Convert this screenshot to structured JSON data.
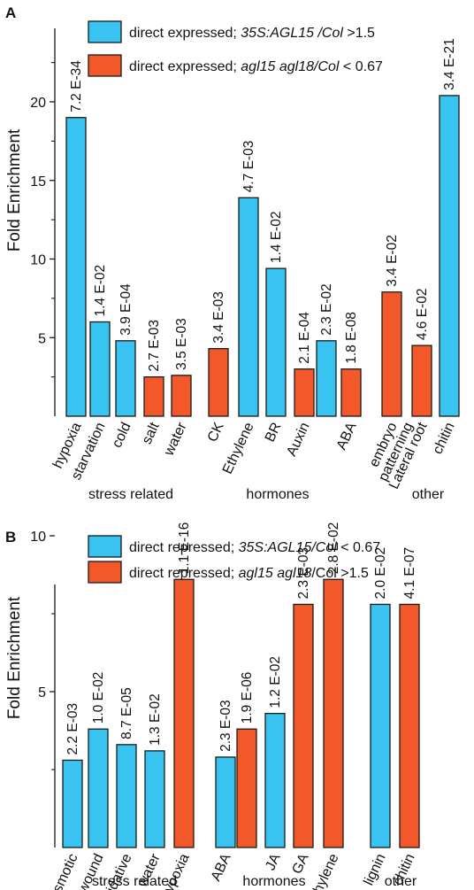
{
  "colors": {
    "blue": "#38c3f0",
    "orange": "#f3582a",
    "stroke": "#1a1a1a"
  },
  "chart_data": [
    {
      "type": "bar",
      "panel": "A",
      "ylabel": "Fold Enrichment",
      "ylim": [
        0,
        25
      ],
      "yticks": [
        5,
        10,
        15,
        20
      ],
      "legend": [
        {
          "color": "blue",
          "parts": [
            {
              "t": "direct expressed; ",
              "i": false
            },
            {
              "t": "35S:AGL15 /Col",
              "i": true
            },
            {
              "t": " >1.5",
              "i": false
            }
          ]
        },
        {
          "color": "orange",
          "parts": [
            {
              "t": "direct expressed; ",
              "i": false
            },
            {
              "t": "agl15 agl18/Col",
              "i": true
            },
            {
              "t": " < 0.67",
              "i": false
            }
          ]
        }
      ],
      "categories": [
        {
          "label": [
            "hypoxia"
          ],
          "value": 19.0,
          "color": "blue",
          "pval": "7.2 E-34"
        },
        {
          "label": [
            "starvation"
          ],
          "value": 6.0,
          "color": "blue",
          "pval": "1.4 E-02"
        },
        {
          "label": [
            "cold"
          ],
          "value": 4.8,
          "color": "blue",
          "pval": "3.9 E-04"
        },
        {
          "label": [
            "salt"
          ],
          "value": 2.5,
          "color": "orange",
          "pval": "2.7 E-03"
        },
        {
          "label": [
            "water"
          ],
          "value": 2.6,
          "color": "orange",
          "pval": "3.5 E-03"
        },
        {
          "label": [
            "CK"
          ],
          "value": 4.3,
          "color": "orange",
          "pval": "3.4 E-03"
        },
        {
          "label": [
            "Ethylene"
          ],
          "value": 13.9,
          "color": "blue",
          "pval": "4.7 E-03"
        },
        {
          "label": [
            "BR"
          ],
          "value": 9.4,
          "color": "blue",
          "pval": "1.4 E-02"
        },
        {
          "label": [
            "Auxin"
          ],
          "value": 3.0,
          "color": "orange",
          "pval": "2.1 E-04"
        },
        {
          "label": [],
          "value": 4.8,
          "color": "blue",
          "pval": "2.3 E-02"
        },
        {
          "label": [
            "ABA"
          ],
          "value": 3.0,
          "color": "orange",
          "pval": "1.8 E-08"
        },
        {
          "label": [
            "embryo",
            "patterning"
          ],
          "value": 7.9,
          "color": "orange",
          "pval": "3.4 E-02"
        },
        {
          "label": [
            "Lateral root"
          ],
          "value": 4.5,
          "color": "orange",
          "pval": "4.6 E-02"
        },
        {
          "label": [
            "chitin"
          ],
          "value": 20.4,
          "color": "blue",
          "pval": "3.4 E-21"
        }
      ],
      "groups": [
        "stress related",
        "hormones",
        "other"
      ]
    },
    {
      "type": "bar",
      "panel": "B",
      "ylabel": "Fold Enrichment",
      "ylim": [
        0,
        13.5
      ],
      "yticks": [
        5,
        10
      ],
      "legend": [
        {
          "color": "blue",
          "parts": [
            {
              "t": "direct repressed; ",
              "i": false
            },
            {
              "t": "35S:AGL15/Col",
              "i": true
            },
            {
              "t": " < 0.67",
              "i": false
            }
          ]
        },
        {
          "color": "orange",
          "parts": [
            {
              "t": "direct repressed; ",
              "i": false
            },
            {
              "t": "agl15 agl18",
              "i": true
            },
            {
              "t": "/Col >1.5",
              "i": false
            }
          ]
        }
      ],
      "categories": [
        {
          "label": [
            "osmotic"
          ],
          "value": 2.8,
          "color": "blue",
          "pval": "2.2 E-03"
        },
        {
          "label": [
            "wound"
          ],
          "value": 3.8,
          "color": "blue",
          "pval": "1.0 E-02"
        },
        {
          "label": [
            "oxidative"
          ],
          "value": 3.3,
          "color": "blue",
          "pval": "8.7 E-05"
        },
        {
          "label": [
            "water"
          ],
          "value": 3.1,
          "color": "blue",
          "pval": "1.3 E-02"
        },
        {
          "label": [
            "hypoxia"
          ],
          "value": 8.6,
          "color": "orange",
          "pval": "1.1 E-16"
        },
        {
          "label": [
            "ABA"
          ],
          "value": 2.9,
          "color": "blue",
          "pval": "2.3 E-03"
        },
        {
          "label": [],
          "value": 3.8,
          "color": "orange",
          "pval": "1.9 E-06"
        },
        {
          "label": [
            "JA"
          ],
          "value": 4.3,
          "color": "blue",
          "pval": "1.2 E-02"
        },
        {
          "label": [
            "GA"
          ],
          "value": 7.8,
          "color": "orange",
          "pval": "2.3 E-03"
        },
        {
          "label": [
            "Ethylene"
          ],
          "value": 8.6,
          "color": "orange",
          "pval": "2.8 E-02"
        },
        {
          "label": [
            "lignin"
          ],
          "value": 7.8,
          "color": "blue",
          "pval": "2.0 E-02"
        },
        {
          "label": [
            "chitin"
          ],
          "value": 7.8,
          "color": "orange",
          "pval": "4.1 E-07"
        }
      ],
      "groups": [
        "stress related",
        "hormones",
        "other"
      ]
    }
  ]
}
